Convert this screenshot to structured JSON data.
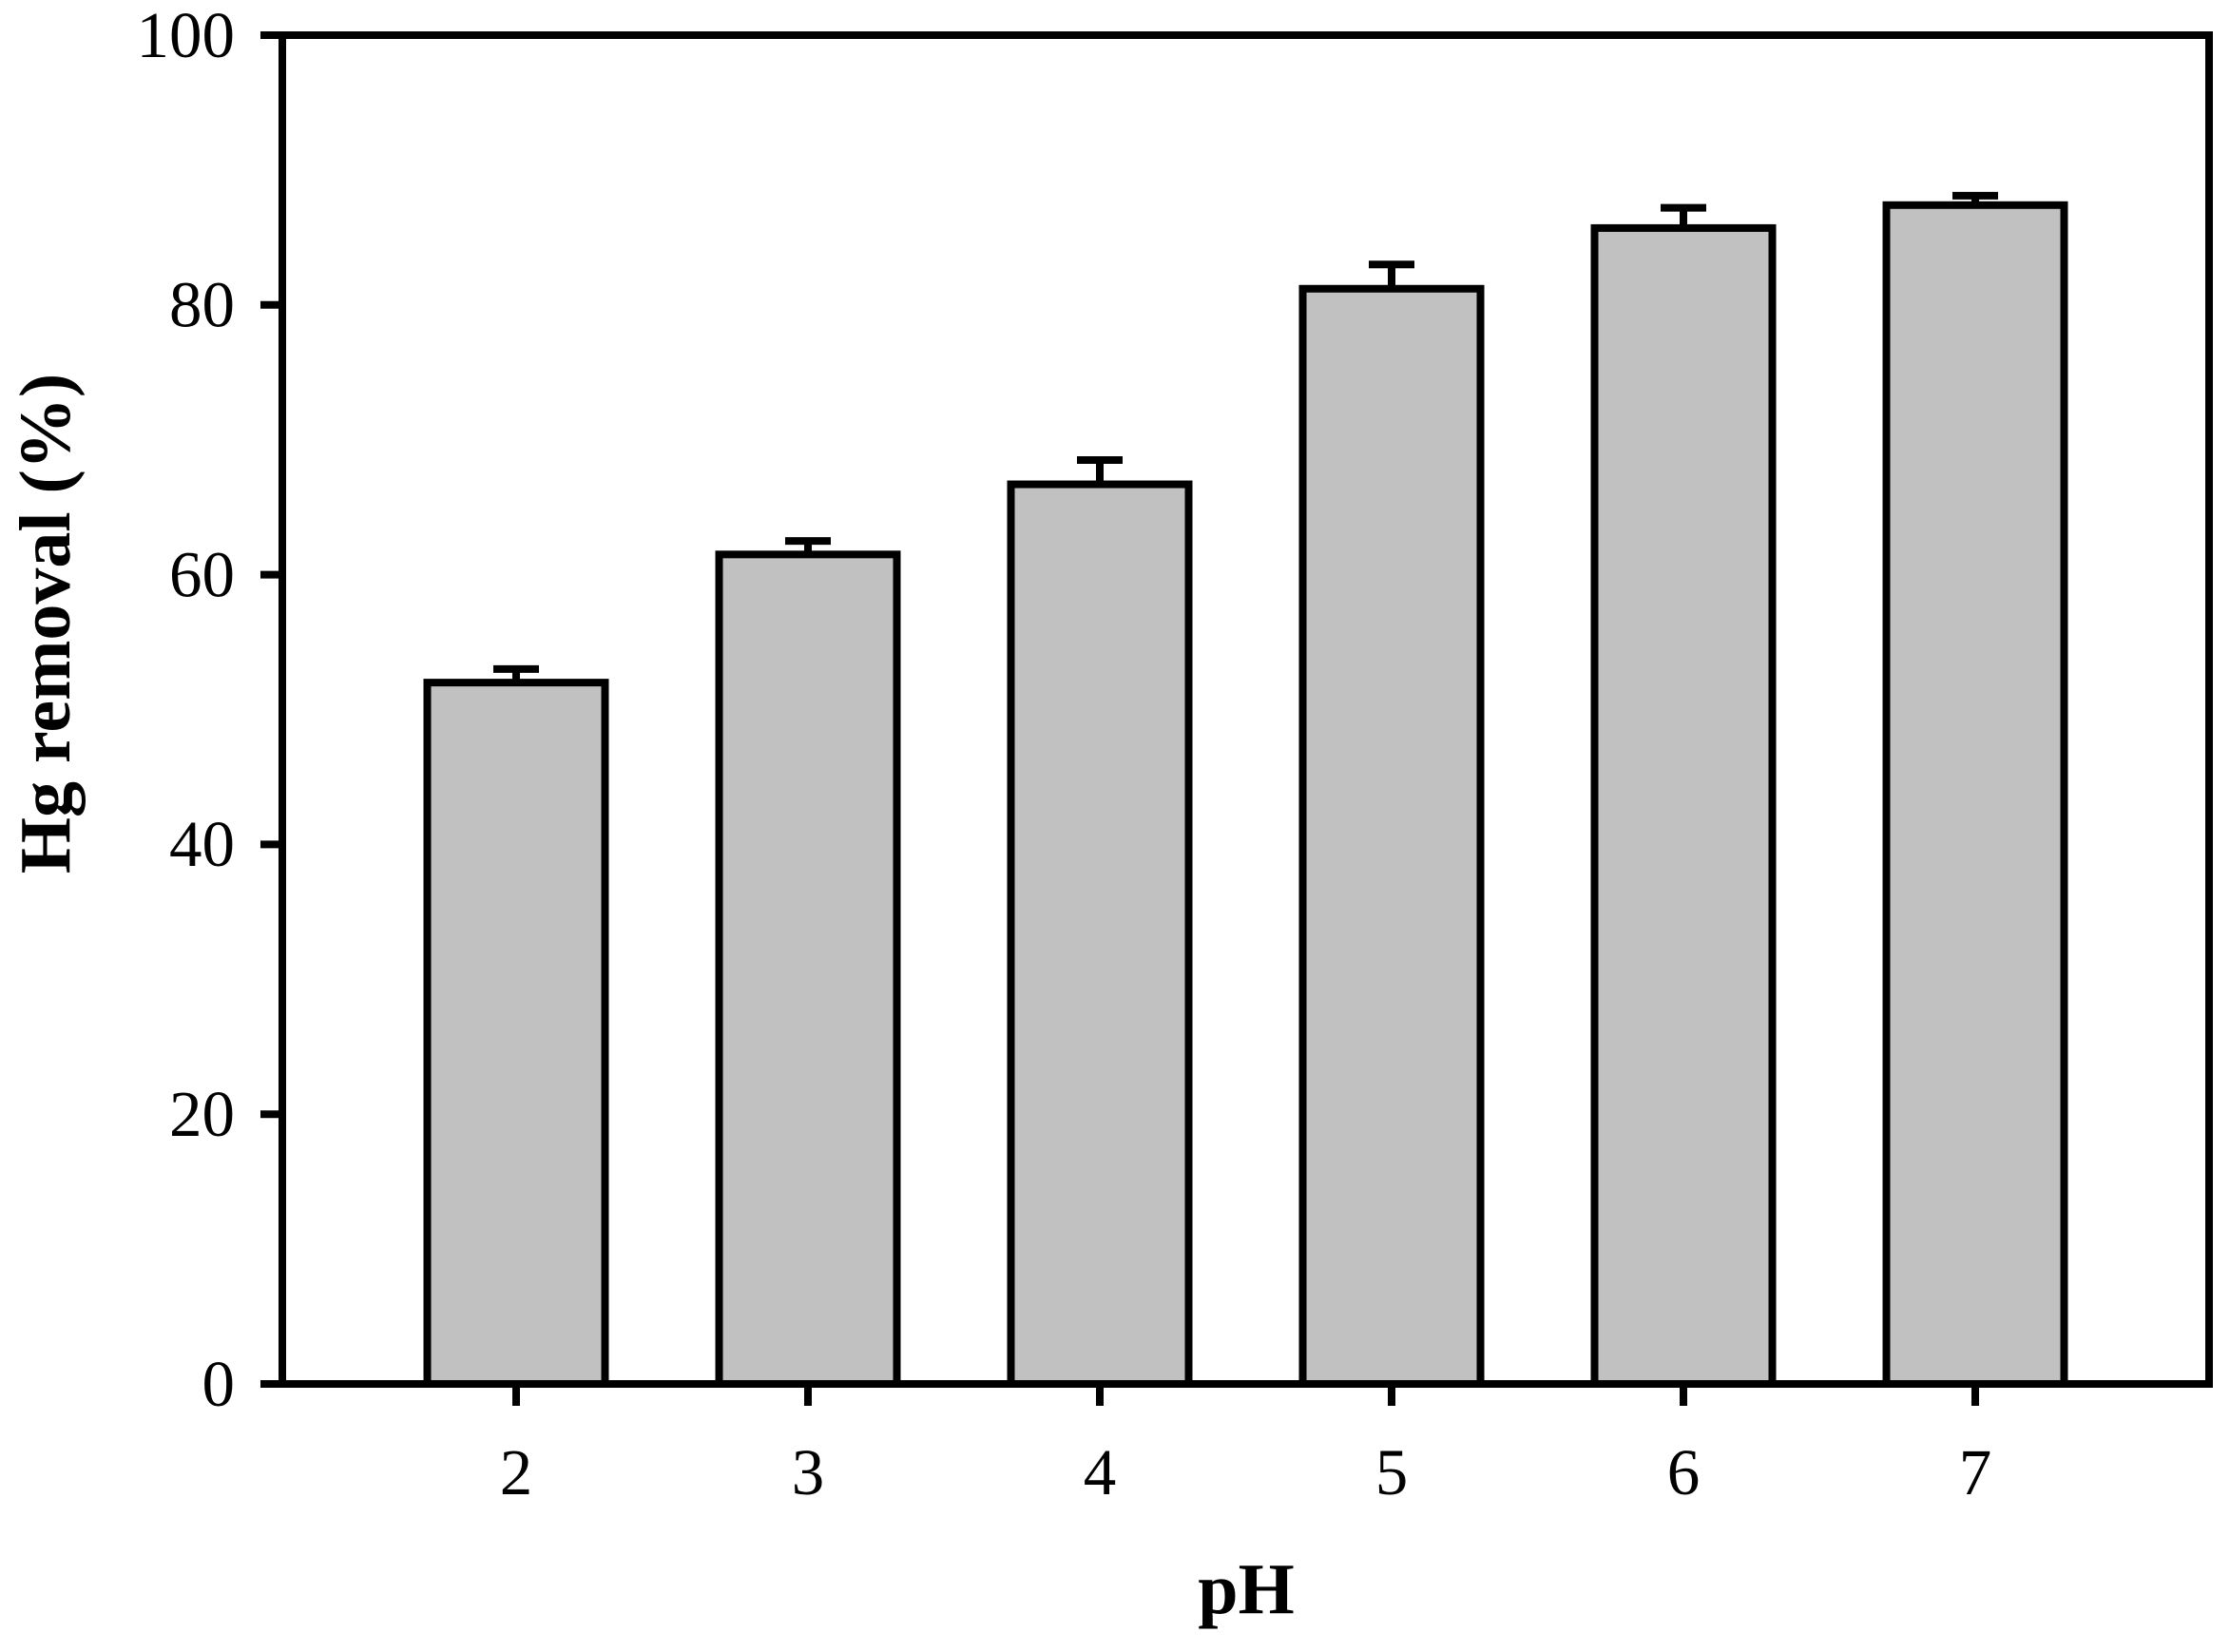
{
  "chart_data": {
    "type": "bar",
    "title": "",
    "xlabel": "pH",
    "ylabel": "Hg removal (%)",
    "categories": [
      "2",
      "3",
      "4",
      "5",
      "6",
      "7"
    ],
    "values": [
      52,
      61.5,
      66.7,
      81.2,
      85.7,
      87.4
    ],
    "error_bars_upper": [
      1.0,
      1.0,
      1.8,
      1.8,
      1.5,
      0.7
    ],
    "ylim": [
      0,
      100
    ],
    "y_ticks": [
      "0",
      "20",
      "40",
      "60",
      "80",
      "100"
    ],
    "grid": "off",
    "legend": "none",
    "frame": "box",
    "bar_fill_color": "#c1c1c1",
    "bar_stroke_color": "#000000",
    "axis_color": "#000000"
  }
}
